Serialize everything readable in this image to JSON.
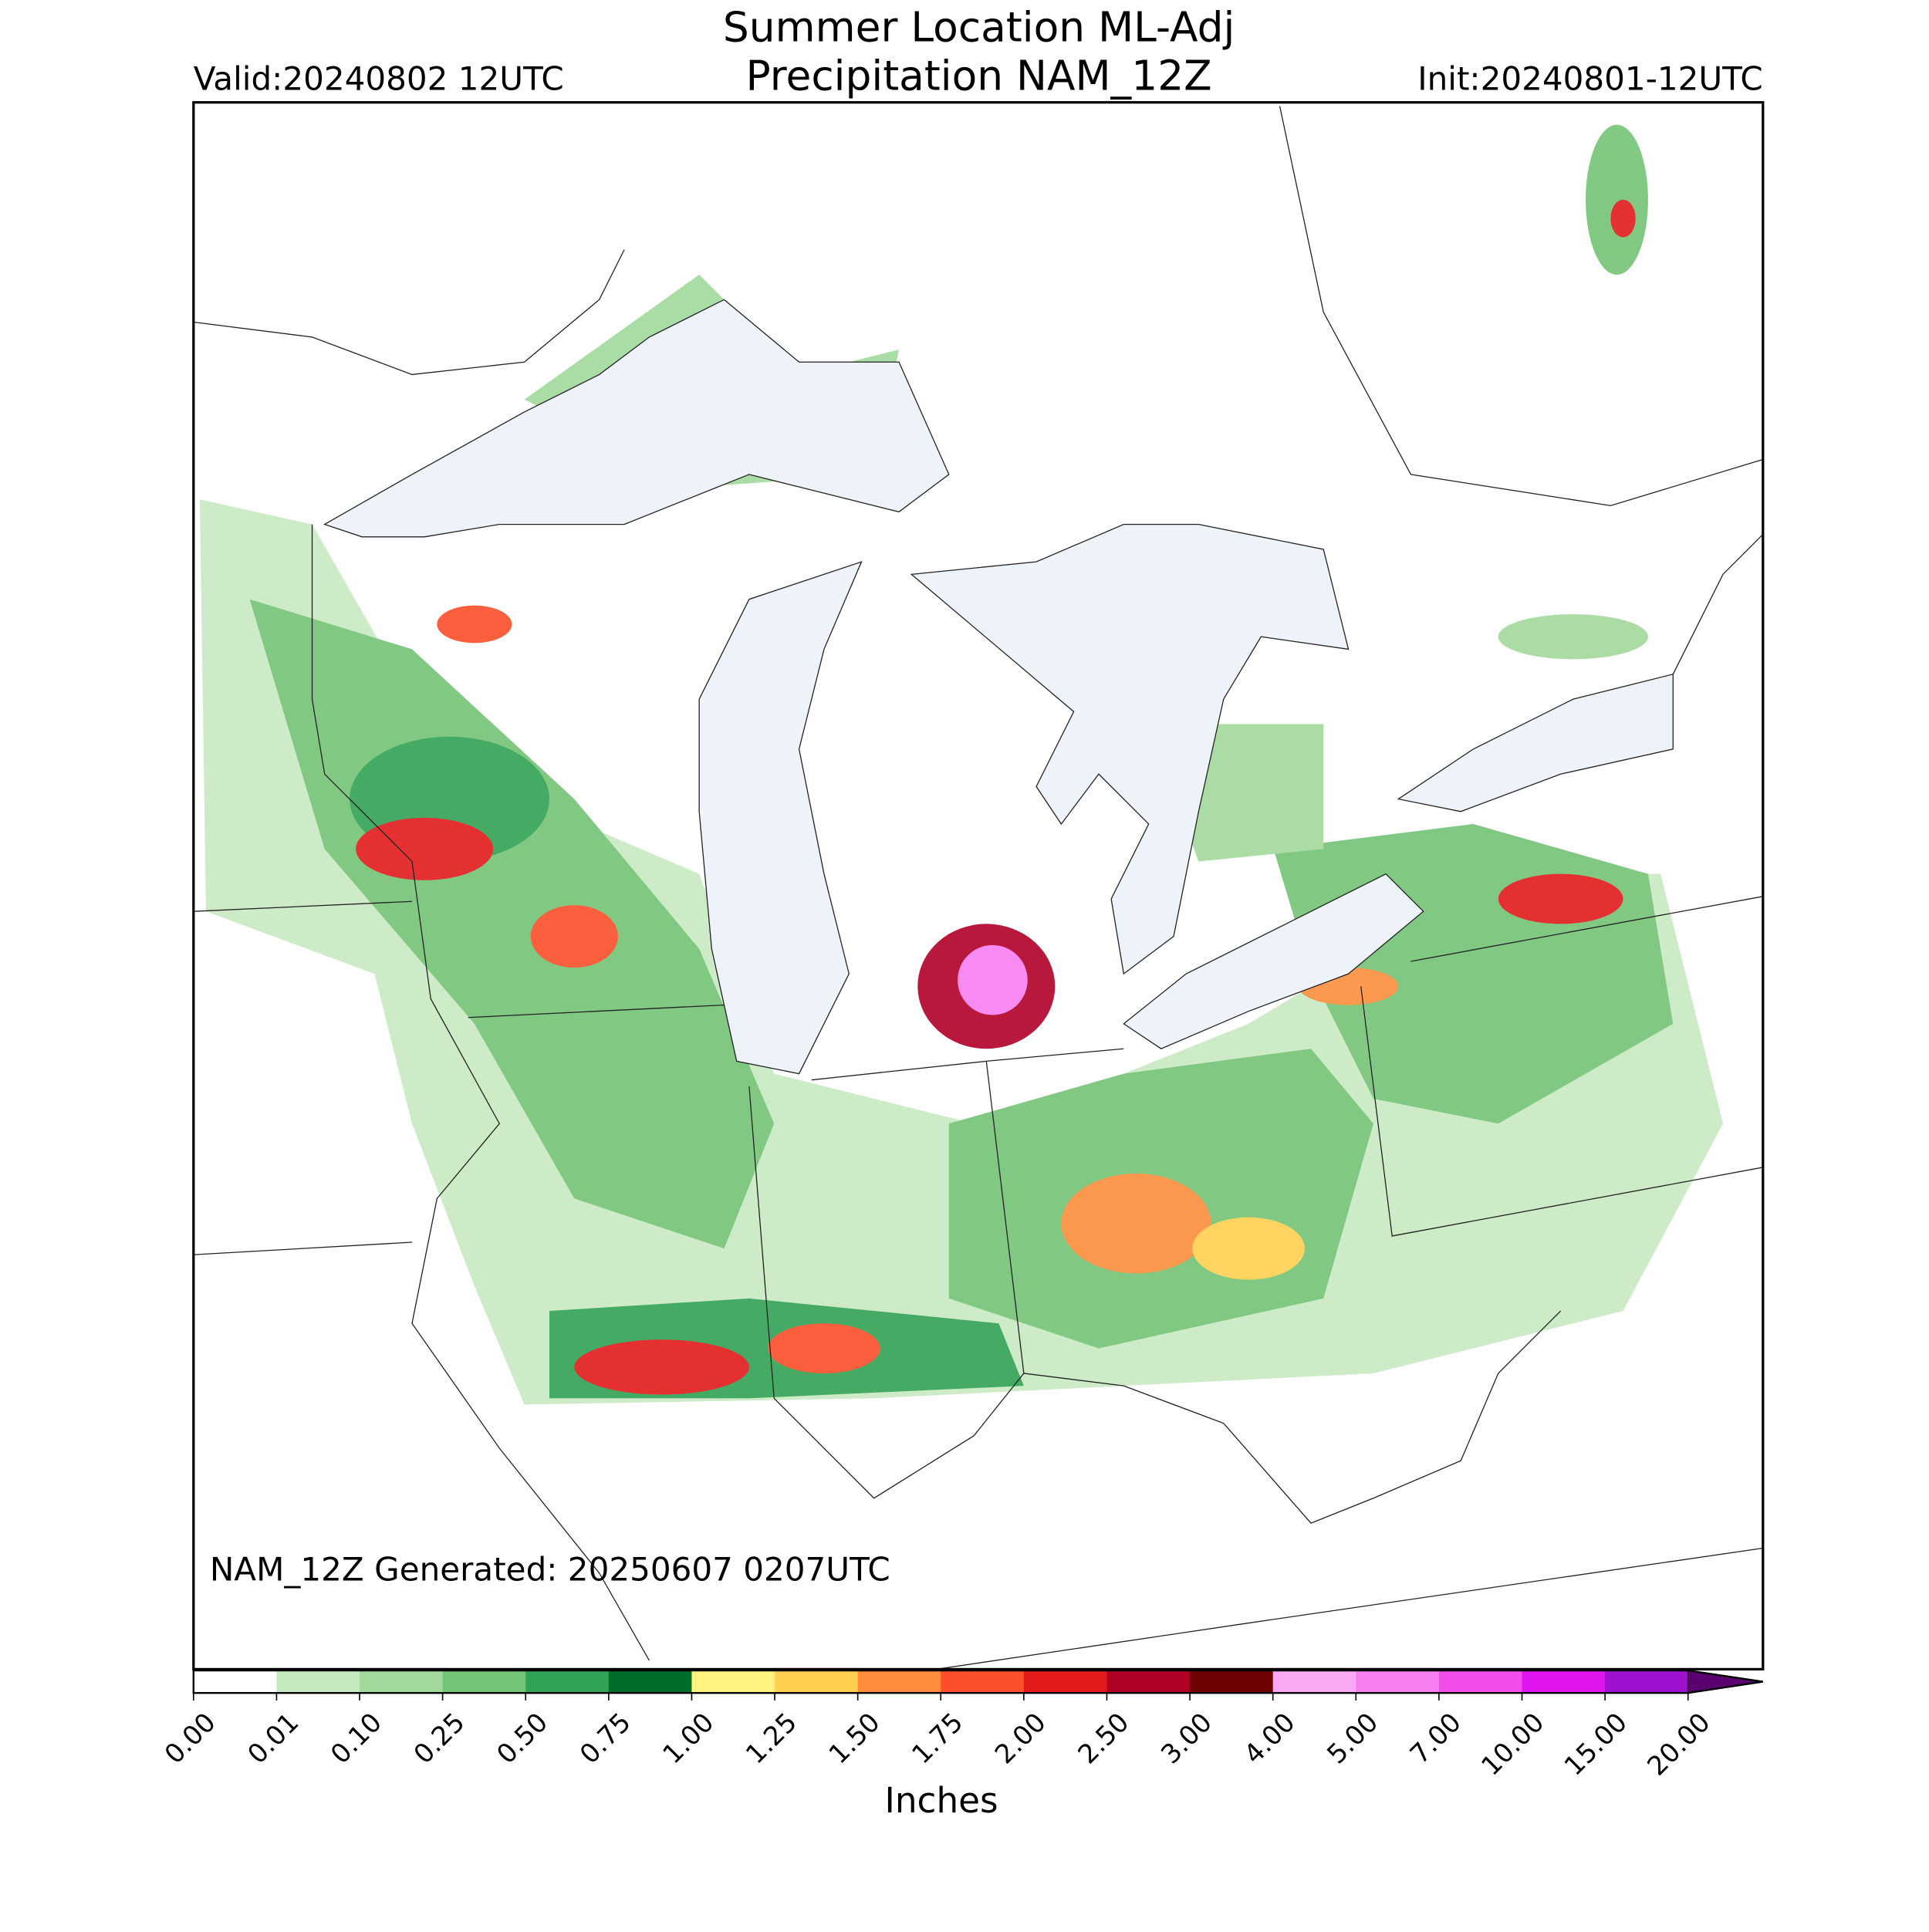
{
  "header": {
    "title": "Summer Location ML-Adj",
    "subtitle": "Precipitation NAM_12Z",
    "valid": "Valid:20240802 12UTC",
    "init": "Init:20240801-12UTC"
  },
  "annotation": "NAM_12Z Generated: 20250607 0207UTC",
  "colorbar": {
    "label": "Inches",
    "ticks": [
      {
        "value": 0,
        "label": "0.00"
      },
      {
        "value": 0.01,
        "label": "0.01"
      },
      {
        "value": 0.1,
        "label": "0.10"
      },
      {
        "value": 0.25,
        "label": "0.25"
      },
      {
        "value": 0.5,
        "label": "0.50"
      },
      {
        "value": 0.75,
        "label": "0.75"
      },
      {
        "value": 1,
        "label": "1.00"
      },
      {
        "value": 1.25,
        "label": "1.25"
      },
      {
        "value": 1.5,
        "label": "1.50"
      },
      {
        "value": 1.75,
        "label": "1.75"
      },
      {
        "value": 2,
        "label": "2.00"
      },
      {
        "value": 2.5,
        "label": "2.50"
      },
      {
        "value": 3,
        "label": "3.00"
      },
      {
        "value": 4,
        "label": "4.00"
      },
      {
        "value": 5,
        "label": "5.00"
      },
      {
        "value": 7,
        "label": "7.00"
      },
      {
        "value": 10,
        "label": "10.00"
      },
      {
        "value": 15,
        "label": "15.00"
      },
      {
        "value": 20,
        "label": "20.00"
      }
    ],
    "colors": [
      "#ffffff",
      "#c7e9c0",
      "#a1d99b",
      "#74c476",
      "#31a354",
      "#006d2c",
      "#fff380",
      "#ffd04f",
      "#fd8d3c",
      "#fc4e2a",
      "#e31a1c",
      "#b10026",
      "#6e0000",
      "#f9a8f2",
      "#f77ff0",
      "#f24de8",
      "#e015f0",
      "#a010d0"
    ],
    "extend_color": "#5a0070"
  }
}
